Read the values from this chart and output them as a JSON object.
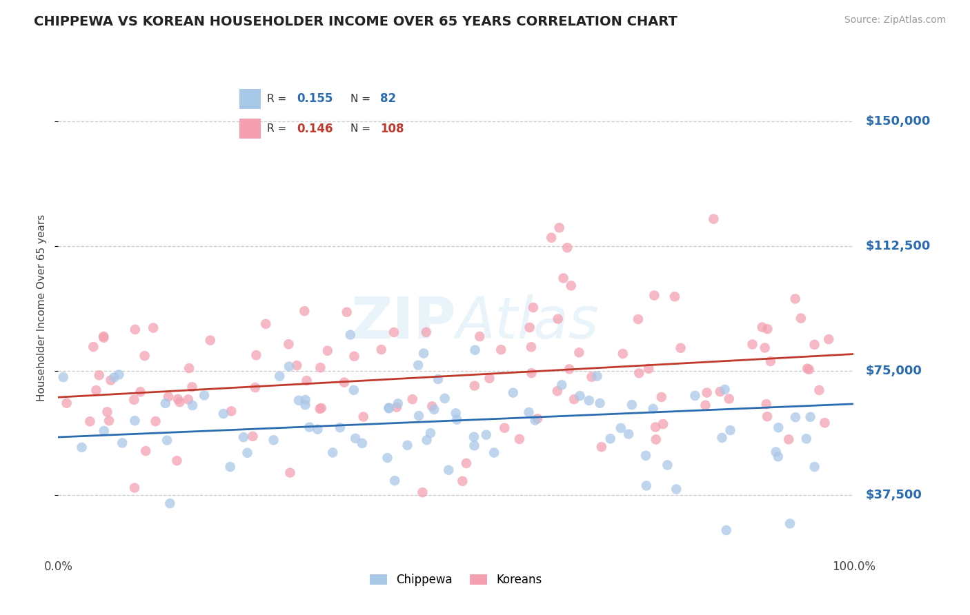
{
  "title": "CHIPPEWA VS KOREAN HOUSEHOLDER INCOME OVER 65 YEARS CORRELATION CHART",
  "source": "Source: ZipAtlas.com",
  "ylabel": "Householder Income Over 65 years",
  "xlim": [
    0.0,
    100.0
  ],
  "ylim": [
    20000,
    168000
  ],
  "yticks": [
    37500,
    75000,
    112500,
    150000
  ],
  "ytick_labels": [
    "$37,500",
    "$75,000",
    "$112,500",
    "$150,000"
  ],
  "chippewa_color": "#a8c8e8",
  "korean_color": "#f4a0b0",
  "chippewa_line_color": "#2b6cb0",
  "korean_line_color": "#c0392b",
  "ytick_color": "#2b6cb0",
  "legend_r_chippewa": "0.155",
  "legend_n_chippewa": "82",
  "legend_r_korean": "0.146",
  "legend_n_korean": "108",
  "watermark": "ZIPAtlas",
  "background_color": "#ffffff",
  "chip_line_y0": 55000,
  "chip_line_y1": 65000,
  "kor_line_y0": 67000,
  "kor_line_y1": 80000
}
